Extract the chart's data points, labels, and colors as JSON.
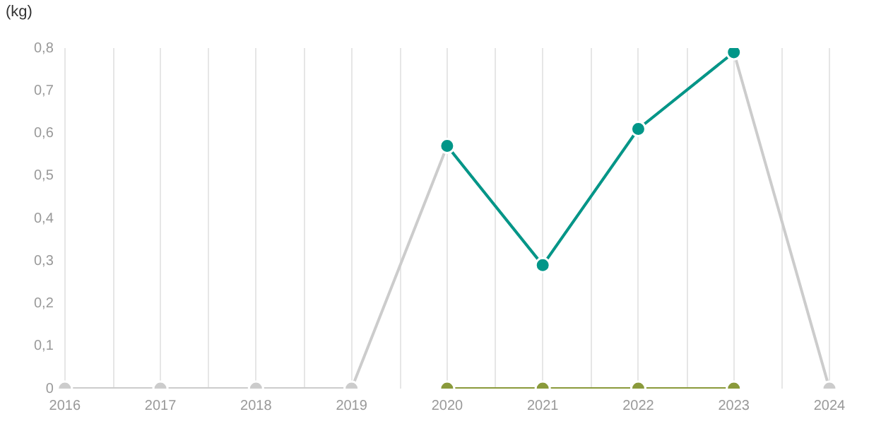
{
  "chart_data": {
    "type": "line",
    "ylabel": "(kg)",
    "categories": [
      "2016",
      "2017",
      "2018",
      "2019",
      "2020",
      "2021",
      "2022",
      "2023",
      "2024"
    ],
    "series": [
      {
        "color": "#cccccc",
        "values": [
          0,
          0,
          0,
          0,
          0.57,
          0.29,
          0.61,
          0.79,
          0
        ]
      },
      {
        "color": "#8a9a3b",
        "values": [
          null,
          null,
          null,
          null,
          0,
          0,
          0,
          0,
          null
        ]
      },
      {
        "color": "#009688",
        "values": [
          null,
          null,
          null,
          null,
          0.57,
          0.29,
          0.61,
          0.79,
          null
        ]
      }
    ],
    "ylim": [
      0,
      0.8
    ],
    "yticks": [
      {
        "value": 0,
        "label": "0"
      },
      {
        "value": 0.1,
        "label": "0,1"
      },
      {
        "value": 0.2,
        "label": "0,2"
      },
      {
        "value": 0.3,
        "label": "0,3"
      },
      {
        "value": 0.4,
        "label": "0,4"
      },
      {
        "value": 0.5,
        "label": "0,5"
      },
      {
        "value": 0.6,
        "label": "0,6"
      },
      {
        "value": 0.7,
        "label": "0,7"
      },
      {
        "value": 0.8,
        "label": "0,8"
      }
    ],
    "grid": "x",
    "marker": "circle",
    "line_style": "solid",
    "legend": false
  }
}
